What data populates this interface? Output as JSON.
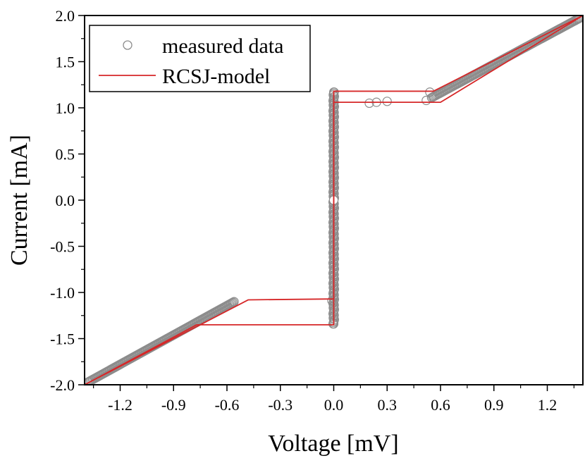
{
  "chart_data": {
    "type": "scatter",
    "title": "",
    "xlabel": "Voltage [mV]",
    "ylabel": "Current [mA]",
    "xlim": [
      -1.4,
      1.4
    ],
    "ylim": [
      -2.0,
      2.0
    ],
    "x_ticks": [
      -1.2,
      -0.9,
      -0.6,
      -0.3,
      0.0,
      0.3,
      0.6,
      0.9,
      1.2
    ],
    "x_tick_labels": [
      "-1.2",
      "-0.9",
      "-0.6",
      "-0.3",
      "0.0",
      "0.3",
      "0.6",
      "0.9",
      "1.2"
    ],
    "y_ticks": [
      2.0,
      1.5,
      1.0,
      0.5,
      0.0,
      -0.5,
      -1.0,
      -1.5,
      -2.0
    ],
    "y_tick_labels": [
      "2.0",
      "1.5",
      "1.0",
      "0.5",
      "0.0",
      "-0.5",
      "-1.0",
      "-1.5",
      "-2.0"
    ],
    "grid": false,
    "legend_position": "top-left",
    "series": [
      {
        "name": "measured data",
        "kind": "scatter",
        "marker": "open-circle",
        "color": "#8c8c8c",
        "segments": [
          {
            "x_range": [
              -1.38,
              -0.56
            ],
            "y_range": [
              -1.97,
              -1.1
            ]
          },
          {
            "x_range": [
              0.55,
              1.38
            ],
            "y_range": [
              1.11,
              1.97
            ]
          },
          {
            "x": 0.0,
            "y_range": [
              -1.34,
              1.17
            ]
          }
        ],
        "points": [
          {
            "x": -0.01,
            "y": -1.09
          },
          {
            "x": 0.0,
            "y": -1.34
          },
          {
            "x": 0.0,
            "y": 1.17
          },
          {
            "x": 0.2,
            "y": 1.05
          },
          {
            "x": 0.24,
            "y": 1.06
          },
          {
            "x": 0.3,
            "y": 1.07
          },
          {
            "x": 0.52,
            "y": 1.08
          },
          {
            "x": 0.54,
            "y": 1.17
          },
          {
            "x": 0.0,
            "y": 0.0
          }
        ]
      },
      {
        "name": "RCSJ-model",
        "kind": "line",
        "color": "#d62728",
        "branches": [
          [
            {
              "x": -1.4,
              "y": -2.0
            },
            {
              "x": -0.77,
              "y": -1.35
            },
            {
              "x": 0.0,
              "y": -1.35
            },
            {
              "x": 0.0,
              "y": 1.18
            },
            {
              "x": 0.56,
              "y": 1.18
            },
            {
              "x": 1.4,
              "y": 2.0
            }
          ],
          [
            {
              "x": 1.4,
              "y": 2.0
            },
            {
              "x": 0.6,
              "y": 1.06
            },
            {
              "x": 0.0,
              "y": 1.06
            },
            {
              "x": 0.0,
              "y": -1.07
            },
            {
              "x": -0.48,
              "y": -1.08
            },
            {
              "x": -1.4,
              "y": -2.0
            }
          ]
        ]
      }
    ]
  }
}
